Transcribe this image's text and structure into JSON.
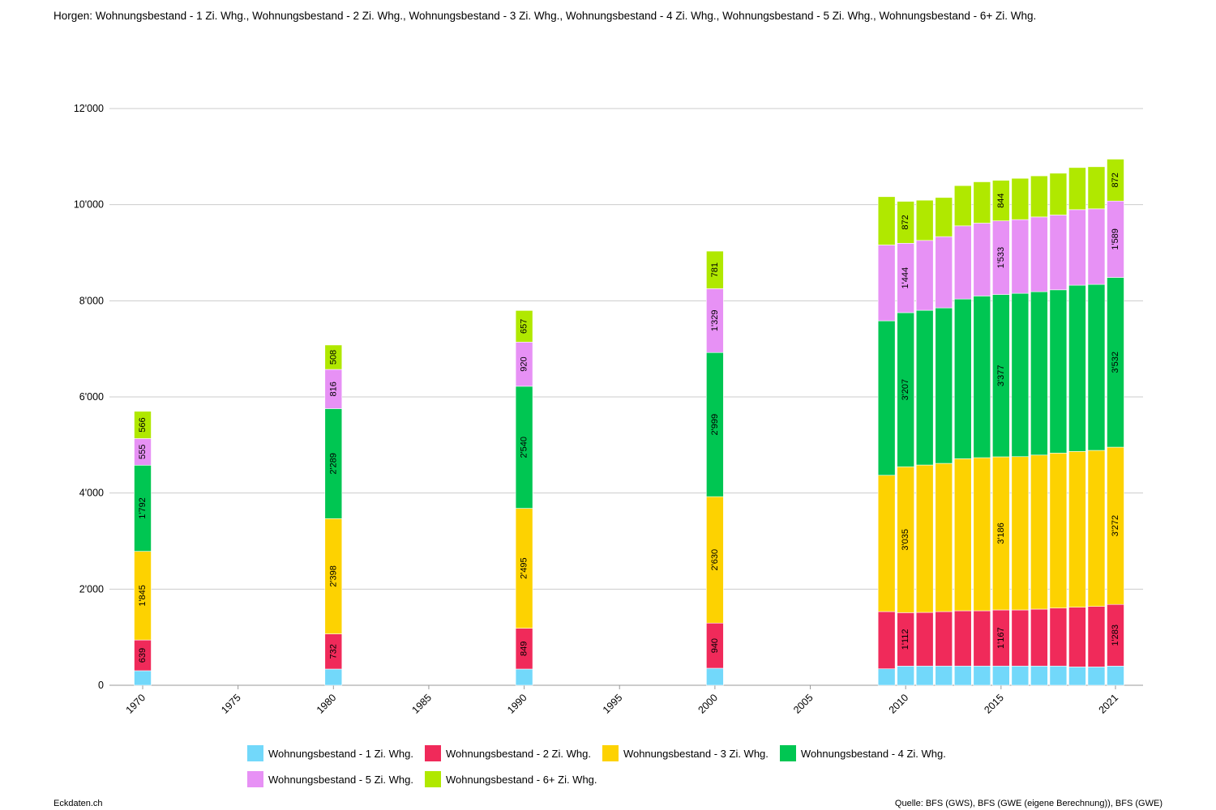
{
  "chart_data": {
    "type": "bar",
    "stacked": true,
    "title": "Horgen: Wohnungsbestand - 1 Zi. Whg., Wohnungsbestand - 2 Zi. Whg., Wohnungsbestand - 3 Zi. Whg., Wohnungsbestand - 4 Zi. Whg., Wohnungsbestand - 5 Zi. Whg., Wohnungsbestand - 6+ Zi. Whg.",
    "xlabel": "",
    "ylabel": "",
    "ylim": [
      0,
      12000
    ],
    "yticks": [
      0,
      2000,
      4000,
      6000,
      8000,
      10000,
      12000
    ],
    "ytick_labels": [
      "0",
      "2'000",
      "4'000",
      "6'000",
      "8'000",
      "10'000",
      "12'000"
    ],
    "xlim": [
      1970,
      2021
    ],
    "xticks": [
      1970,
      1975,
      1980,
      1985,
      1990,
      1995,
      2000,
      2005,
      2010,
      2015,
      2021
    ],
    "xtick_labels": [
      "1970",
      "1975",
      "1980",
      "1985",
      "1990",
      "1995",
      "2000",
      "2005",
      "2010",
      "2015",
      "2021"
    ],
    "grid": true,
    "legend_position": "bottom",
    "x": [
      1970,
      1980,
      1990,
      2000,
      2009,
      2010,
      2011,
      2012,
      2013,
      2014,
      2015,
      2016,
      2017,
      2018,
      2019,
      2020,
      2021
    ],
    "labeled_x": [
      1970,
      1980,
      1990,
      2000,
      2010,
      2015,
      2021
    ],
    "series": [
      {
        "name": "Wohnungsbestand - 1 Zi. Whg.",
        "color": "#72d8fa",
        "values": [
          303,
          337,
          337,
          354,
          342,
          399,
          400,
          400,
          400,
          400,
          400,
          400,
          400,
          400,
          382,
          382,
          399
        ],
        "show_labels": false
      },
      {
        "name": "Wohnungsbestand - 2 Zi. Whg.",
        "color": "#f02a5a",
        "values": [
          639,
          732,
          849,
          940,
          1191,
          1112,
          1116,
          1133,
          1150,
          1150,
          1167,
          1167,
          1184,
          1206,
          1241,
          1258,
          1283
        ],
        "show_labels": true
      },
      {
        "name": "Wohnungsbestand - 3 Zi. Whg.",
        "color": "#fdd201",
        "values": [
          1845,
          2398,
          2495,
          2630,
          2836,
          3035,
          3067,
          3084,
          3163,
          3185,
          3186,
          3190,
          3206,
          3225,
          3242,
          3247,
          3272
        ],
        "show_labels": true
      },
      {
        "name": "Wohnungsbestand - 4 Zi. Whg.",
        "color": "#00c652",
        "values": [
          1792,
          2289,
          2540,
          2999,
          3214,
          3207,
          3219,
          3235,
          3324,
          3365,
          3377,
          3398,
          3399,
          3397,
          3459,
          3454,
          3532
        ],
        "show_labels": true
      },
      {
        "name": "Wohnungsbestand - 5 Zi. Whg.",
        "color": "#e791f5",
        "values": [
          555,
          816,
          920,
          1329,
          1578,
          1444,
          1454,
          1483,
          1522,
          1516,
          1533,
          1534,
          1555,
          1557,
          1572,
          1572,
          1589
        ],
        "show_labels": true
      },
      {
        "name": "Wohnungsbestand - 6+ Zi. Whg.",
        "color": "#b0e800",
        "values": [
          566,
          508,
          657,
          781,
          1005,
          872,
          837,
          814,
          837,
          859,
          844,
          859,
          855,
          869,
          876,
          876,
          872
        ],
        "show_labels": true
      }
    ]
  },
  "footer": {
    "left": "Eckdaten.ch",
    "right": "Quelle: BFS (GWS), BFS (GWE (eigene Berechnung)), BFS (GWE)"
  }
}
